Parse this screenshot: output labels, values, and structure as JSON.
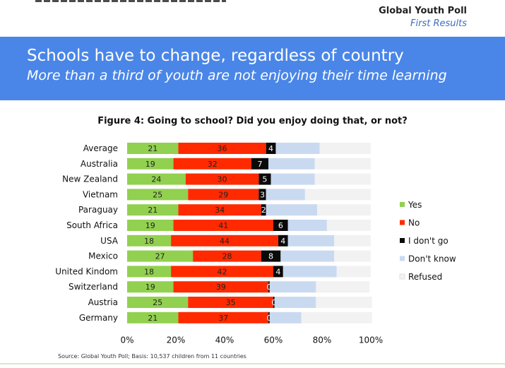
{
  "header": {
    "poll_name": "Global Youth Poll",
    "poll_subtitle": "First Results"
  },
  "banner": {
    "title": "Schools have to change, regardless of country",
    "subtitle": "More than a third of youth are not enjoying their time learning",
    "background": "#4a86e8"
  },
  "chart_data": {
    "type": "bar",
    "orientation": "horizontal",
    "stacked": true,
    "title": "Figure 4: Going to school? Did you enjoy doing that, or not?",
    "categories": [
      "Average",
      "Australia",
      "New Zealand",
      "Vietnam",
      "Paraguay",
      "South Africa",
      "USA",
      "Mexico",
      "United Kindom",
      "Switzerland",
      "Austria",
      "Germany"
    ],
    "series": [
      {
        "name": "Yes",
        "color": "#92d050",
        "label_color": "#222222",
        "values": [
          21,
          19,
          24,
          25,
          21,
          19,
          18,
          27,
          18,
          19,
          25,
          21
        ],
        "labels": [
          "21",
          "19",
          "24",
          "25",
          "21",
          "19",
          "18",
          "27",
          "18",
          "19",
          "25",
          "21"
        ]
      },
      {
        "name": "No",
        "color": "#ff2a00",
        "label_color": "#222222",
        "values": [
          36,
          32,
          30,
          29,
          34,
          41,
          44,
          28,
          42,
          39,
          35,
          37
        ],
        "labels": [
          "36",
          "32",
          "30",
          "29",
          "34",
          "41",
          "44",
          "28",
          "42",
          "39",
          "35",
          "37"
        ]
      },
      {
        "name": "I don't go",
        "color": "#0a0a0a",
        "label_color": "#ffffff",
        "values": [
          4,
          7,
          5,
          3,
          2,
          6,
          4,
          8,
          4,
          0.5,
          0.5,
          0.5
        ],
        "labels": [
          "4",
          "7",
          "5",
          "3",
          "2",
          "6",
          "4",
          "8",
          "4",
          "0",
          "0",
          "0"
        ]
      },
      {
        "name": "Don't know",
        "color": "#c9daf0",
        "label_color": "#222222",
        "values": [
          18,
          19,
          18,
          16,
          21,
          16,
          19,
          22,
          22,
          19,
          17,
          13
        ],
        "labels": [
          "",
          "",
          "",
          "",
          "",
          "",
          "",
          "",
          "",
          "",
          "",
          ""
        ]
      },
      {
        "name": "Refused",
        "color": "#f2f2f2",
        "label_color": "#222222",
        "values": [
          21,
          23,
          23,
          27,
          22,
          18,
          15,
          15,
          14,
          22,
          23,
          29
        ],
        "labels": [
          "",
          "",
          "",
          "",
          "",
          "",
          "",
          "",
          "",
          "",
          "",
          ""
        ]
      }
    ],
    "xlim": [
      0,
      100
    ],
    "x_ticks": [
      "0%",
      "20%",
      "40%",
      "60%",
      "80%",
      "100%"
    ],
    "legend_position": "right",
    "source": "Source: Global Youth Poll; Basis: 10,537 children from 11 countries"
  }
}
